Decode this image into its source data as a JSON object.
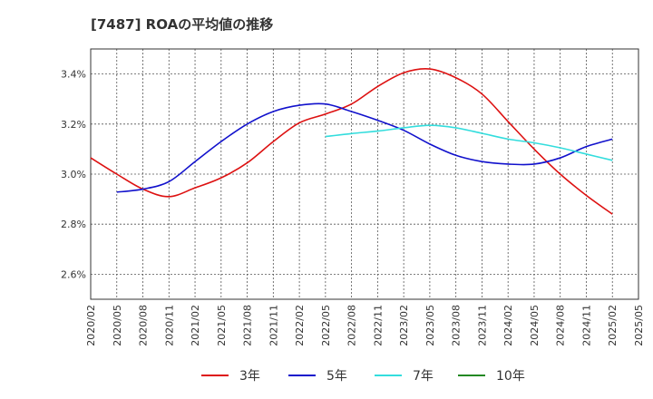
{
  "chart_data": {
    "type": "line",
    "title": "[7487]  ROAの平均値の推移",
    "x": [
      "2020/02",
      "2020/05",
      "2020/08",
      "2020/11",
      "2021/02",
      "2021/05",
      "2021/08",
      "2021/11",
      "2022/02",
      "2022/05",
      "2022/08",
      "2022/11",
      "2023/02",
      "2023/05",
      "2023/08",
      "2023/11",
      "2024/02",
      "2024/05",
      "2024/08",
      "2024/11",
      "2025/02",
      "2025/05"
    ],
    "ylim": [
      2.5,
      3.5
    ],
    "yticks": [
      2.6,
      2.8,
      3.0,
      3.2,
      3.4
    ],
    "ytick_labels": [
      "2.6%",
      "2.8%",
      "3.0%",
      "3.2%",
      "3.4%"
    ],
    "grid": true,
    "legend_position": "bottom",
    "series": [
      {
        "name": "3年",
        "color": "#dd1111",
        "values": [
          3.065,
          3.0,
          2.94,
          2.91,
          2.945,
          2.985,
          3.045,
          3.13,
          3.205,
          3.24,
          3.28,
          3.35,
          3.405,
          3.42,
          3.385,
          3.32,
          3.21,
          3.1,
          3.0,
          2.915,
          2.84,
          null
        ]
      },
      {
        "name": "5年",
        "color": "#1111cc",
        "values": [
          null,
          2.928,
          2.94,
          2.97,
          3.05,
          3.13,
          3.2,
          3.25,
          3.275,
          3.28,
          3.25,
          3.215,
          3.175,
          3.12,
          3.075,
          3.05,
          3.04,
          3.04,
          3.065,
          3.11,
          3.14,
          null
        ]
      },
      {
        "name": "7年",
        "color": "#33dddd",
        "values": [
          null,
          null,
          null,
          null,
          null,
          null,
          null,
          null,
          null,
          3.15,
          3.162,
          3.172,
          3.185,
          3.195,
          3.185,
          3.163,
          3.14,
          3.125,
          3.105,
          3.08,
          3.055,
          null
        ]
      },
      {
        "name": "10年",
        "color": "#228822",
        "values": [
          null,
          null,
          null,
          null,
          null,
          null,
          null,
          null,
          null,
          null,
          null,
          null,
          null,
          null,
          null,
          null,
          null,
          null,
          null,
          null,
          null,
          null
        ]
      }
    ]
  }
}
